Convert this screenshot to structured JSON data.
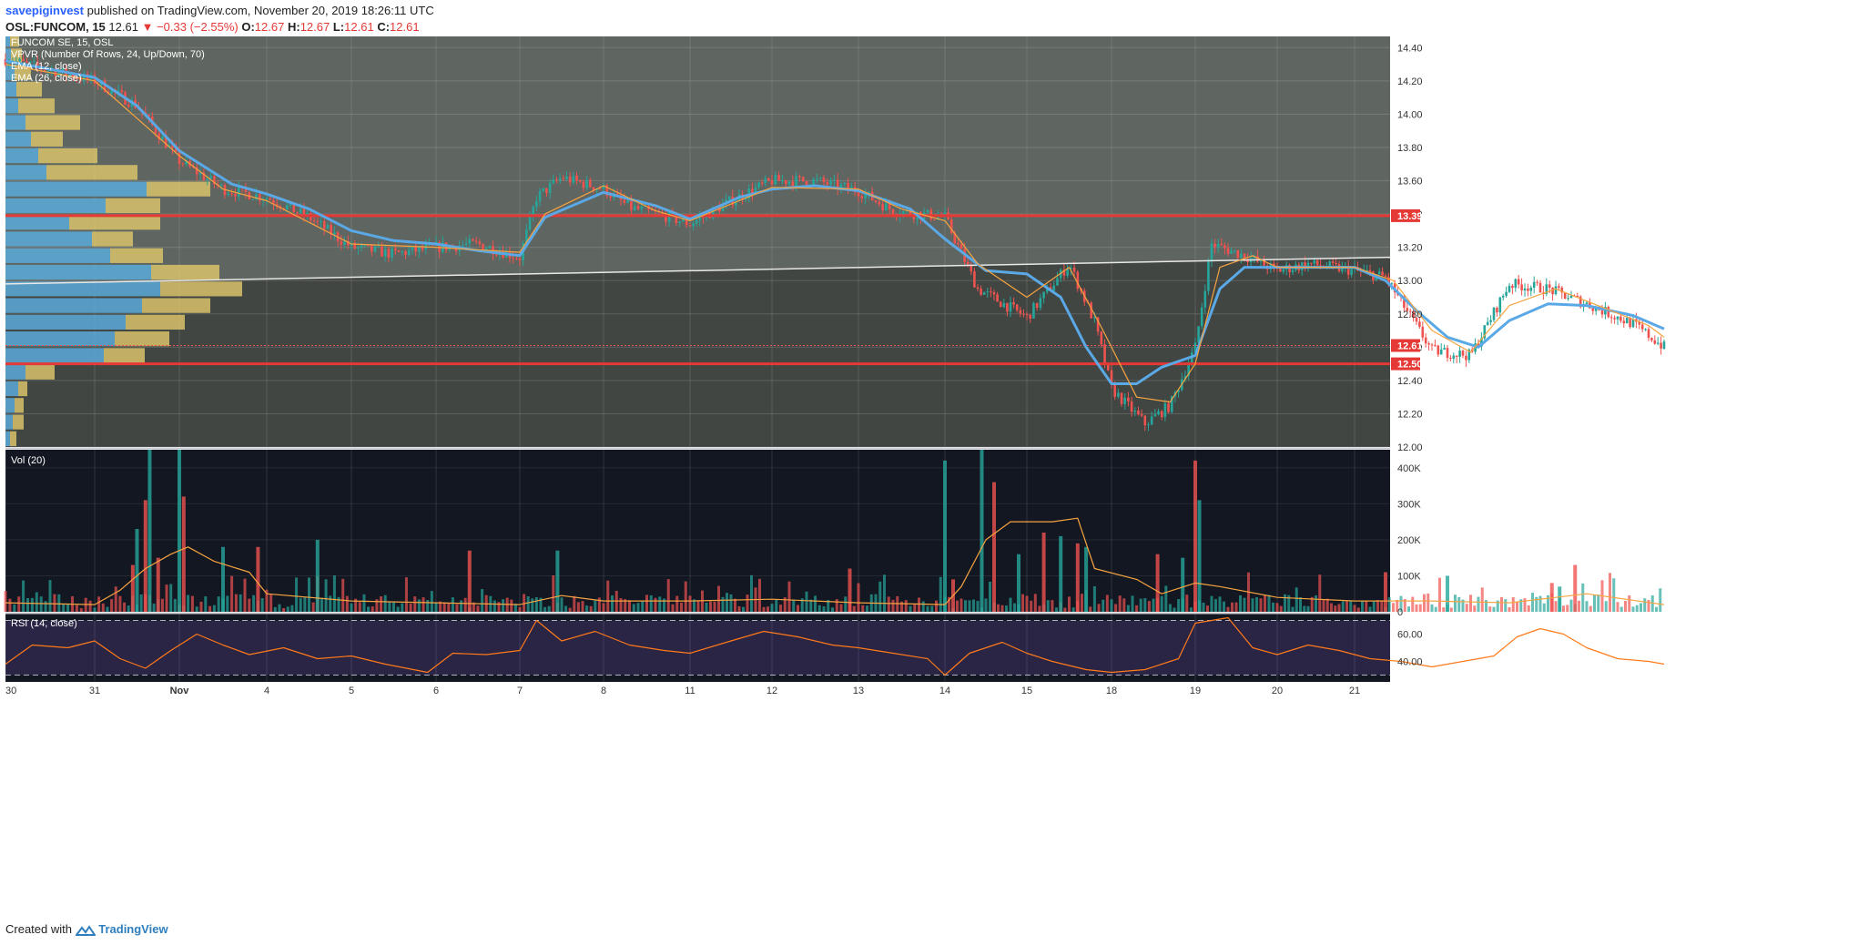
{
  "header": {
    "user": "savepiginvest",
    "published": "published on TradingView.com, November 20, 2019 18:26:11 UTC"
  },
  "quote": {
    "symbol": "OSL:FUNCOM, 15",
    "last": "12.61",
    "change": "−0.33 (−2.55%)",
    "open_label": "O:",
    "open": "12.67",
    "high_label": "H:",
    "high": "12.67",
    "low_label": "L:",
    "low": "12.61",
    "close_label": "C:",
    "close": "12.61"
  },
  "footer": {
    "created_with": "Created with",
    "brand": "TradingView"
  },
  "colors": {
    "price_bg": "#5f6560",
    "pane_bg": "#131722",
    "up": "#26a69a",
    "down": "#ef5350",
    "ema12": "#f7a440",
    "ema26": "#5aa9e6",
    "level": "#e53935",
    "rsi": "#ff7a1a",
    "vpvr_up": "#5aaad8",
    "vpvr_down": "#d8c26a"
  },
  "chart_data": {
    "type": "candlestick",
    "legend": {
      "title": "FUNCOM SE, 15, OSL",
      "vpvr": "VPVR (Number Of Rows, 24, Up/Down, 70)",
      "ema12": "EMA (12, close)",
      "ema26": "EMA (26, close)",
      "vol": "Vol (20)",
      "rsi": "RSI (14, close)"
    },
    "price_axis": {
      "ylim": [
        12.0,
        14.5
      ],
      "ticks": [
        "14.40",
        "14.20",
        "14.00",
        "13.80",
        "13.60",
        "13.40",
        "13.20",
        "13.00",
        "12.80",
        "12.60",
        "12.40",
        "12.20",
        "12.00"
      ]
    },
    "x_ticks": [
      "30",
      "31",
      "Nov",
      "4",
      "5",
      "6",
      "7",
      "8",
      "11",
      "12",
      "13",
      "14",
      "15",
      "18",
      "19",
      "20",
      "21"
    ],
    "horizontal_levels": [
      {
        "value": 13.39,
        "label": "13.39"
      },
      {
        "value": 12.5,
        "label": "12.50"
      }
    ],
    "last_price": {
      "value": 12.61,
      "label": "12.61"
    },
    "trendline": {
      "start_price": 12.98,
      "end_price": 13.14
    },
    "price_path": [
      [
        0,
        14.33
      ],
      [
        1,
        14.2
      ],
      [
        1.5,
        14.05
      ],
      [
        2,
        13.72
      ],
      [
        2.5,
        13.55
      ],
      [
        3,
        13.5
      ],
      [
        3.5,
        13.38
      ],
      [
        4,
        13.2
      ],
      [
        4.5,
        13.16
      ],
      [
        5,
        13.2
      ],
      [
        5.5,
        13.22
      ],
      [
        6,
        13.14
      ],
      [
        6.2,
        13.5
      ],
      [
        6.5,
        13.62
      ],
      [
        7,
        13.55
      ],
      [
        7.3,
        13.44
      ],
      [
        7.7,
        13.39
      ],
      [
        8,
        13.34
      ],
      [
        8.5,
        13.48
      ],
      [
        9,
        13.6
      ],
      [
        9.5,
        13.6
      ],
      [
        10,
        13.54
      ],
      [
        10.4,
        13.42
      ],
      [
        11,
        13.38
      ],
      [
        11.4,
        12.95
      ],
      [
        12,
        12.78
      ],
      [
        12.5,
        13.1
      ],
      [
        12.8,
        12.75
      ],
      [
        13,
        12.35
      ],
      [
        13.4,
        12.14
      ],
      [
        13.7,
        12.25
      ],
      [
        14,
        12.6
      ],
      [
        14.2,
        13.22
      ],
      [
        14.6,
        13.15
      ],
      [
        15,
        13.06
      ],
      [
        15.4,
        13.1
      ],
      [
        16,
        13.06
      ],
      [
        16.4,
        13.02
      ],
      [
        16.7,
        12.8
      ],
      [
        17,
        12.58
      ],
      [
        17.5,
        12.55
      ],
      [
        18,
        12.98
      ],
      [
        18.5,
        12.95
      ],
      [
        19,
        12.86
      ],
      [
        19.6,
        12.74
      ],
      [
        20,
        12.6
      ]
    ],
    "ema12_path": [
      [
        0,
        14.3
      ],
      [
        1,
        14.2
      ],
      [
        2,
        13.75
      ],
      [
        2.5,
        13.55
      ],
      [
        3,
        13.48
      ],
      [
        4,
        13.22
      ],
      [
        5,
        13.2
      ],
      [
        6,
        13.17
      ],
      [
        6.3,
        13.4
      ],
      [
        7,
        13.57
      ],
      [
        7.6,
        13.42
      ],
      [
        8,
        13.36
      ],
      [
        9,
        13.56
      ],
      [
        10,
        13.55
      ],
      [
        10.5,
        13.43
      ],
      [
        11,
        13.36
      ],
      [
        11.4,
        13.1
      ],
      [
        12,
        12.9
      ],
      [
        12.5,
        13.08
      ],
      [
        12.9,
        12.7
      ],
      [
        13.3,
        12.3
      ],
      [
        13.7,
        12.27
      ],
      [
        14,
        12.5
      ],
      [
        14.3,
        13.08
      ],
      [
        14.7,
        13.15
      ],
      [
        15,
        13.08
      ],
      [
        16,
        13.08
      ],
      [
        16.5,
        13.0
      ],
      [
        17,
        12.7
      ],
      [
        17.5,
        12.57
      ],
      [
        18,
        12.85
      ],
      [
        18.6,
        12.95
      ],
      [
        19.2,
        12.84
      ],
      [
        19.8,
        12.73
      ],
      [
        20,
        12.66
      ]
    ],
    "ema26_path": [
      [
        0,
        14.32
      ],
      [
        1,
        14.22
      ],
      [
        1.5,
        14.05
      ],
      [
        2,
        13.78
      ],
      [
        2.6,
        13.58
      ],
      [
        3,
        13.52
      ],
      [
        3.5,
        13.43
      ],
      [
        4,
        13.3
      ],
      [
        4.5,
        13.24
      ],
      [
        5,
        13.22
      ],
      [
        5.5,
        13.18
      ],
      [
        6,
        13.15
      ],
      [
        6.3,
        13.38
      ],
      [
        7,
        13.53
      ],
      [
        7.6,
        13.45
      ],
      [
        8,
        13.37
      ],
      [
        8.6,
        13.5
      ],
      [
        9,
        13.55
      ],
      [
        9.5,
        13.57
      ],
      [
        10,
        13.54
      ],
      [
        10.6,
        13.43
      ],
      [
        11,
        13.25
      ],
      [
        11.5,
        13.06
      ],
      [
        12,
        13.04
      ],
      [
        12.4,
        12.9
      ],
      [
        12.7,
        12.6
      ],
      [
        13,
        12.38
      ],
      [
        13.3,
        12.38
      ],
      [
        13.6,
        12.48
      ],
      [
        14,
        12.55
      ],
      [
        14.3,
        12.95
      ],
      [
        14.6,
        13.08
      ],
      [
        15,
        13.08
      ],
      [
        16,
        13.08
      ],
      [
        16.4,
        13.0
      ],
      [
        16.8,
        12.82
      ],
      [
        17.2,
        12.66
      ],
      [
        17.6,
        12.6
      ],
      [
        18,
        12.76
      ],
      [
        18.5,
        12.86
      ],
      [
        19,
        12.85
      ],
      [
        19.6,
        12.79
      ],
      [
        20,
        12.71
      ]
    ],
    "vpvr_rows": [
      {
        "up": 5,
        "down": 7
      },
      {
        "up": 8,
        "down": 12
      },
      {
        "up": 10,
        "down": 10
      },
      {
        "up": 14,
        "down": 10
      },
      {
        "up": 22,
        "down": 32
      },
      {
        "up": 108,
        "down": 45
      },
      {
        "up": 120,
        "down": 60
      },
      {
        "up": 132,
        "down": 65
      },
      {
        "up": 150,
        "down": 75
      },
      {
        "up": 170,
        "down": 90
      },
      {
        "up": 160,
        "down": 75
      },
      {
        "up": 115,
        "down": 58
      },
      {
        "up": 95,
        "down": 45
      },
      {
        "up": 70,
        "down": 100
      },
      {
        "up": 110,
        "down": 60
      },
      {
        "up": 155,
        "down": 70
      },
      {
        "up": 45,
        "down": 100
      },
      {
        "up": 36,
        "down": 65
      },
      {
        "up": 28,
        "down": 35
      },
      {
        "up": 22,
        "down": 60
      },
      {
        "up": 14,
        "down": 40
      },
      {
        "up": 12,
        "down": 28
      },
      {
        "up": 10,
        "down": 18
      },
      {
        "up": 6,
        "down": 12
      },
      {
        "up": 5,
        "down": 10
      }
    ],
    "volume_axis": {
      "ylim": [
        0,
        450000
      ],
      "ticks": [
        "400K",
        "300K",
        "200K",
        "100K",
        "0"
      ]
    },
    "volume_spikes": [
      [
        1.45,
        130000
      ],
      [
        1.5,
        230000
      ],
      [
        1.6,
        310000
      ],
      [
        1.65,
        470000
      ],
      [
        1.75,
        150000
      ],
      [
        2.0,
        470000
      ],
      [
        2.05,
        320000
      ],
      [
        2.5,
        180000
      ],
      [
        2.9,
        180000
      ],
      [
        3.6,
        200000
      ],
      [
        5.4,
        170000
      ],
      [
        6.45,
        170000
      ],
      [
        9.9,
        120000
      ],
      [
        11.0,
        420000
      ],
      [
        11.1,
        90000
      ],
      [
        11.45,
        470000
      ],
      [
        11.6,
        360000
      ],
      [
        11.9,
        160000
      ],
      [
        12.2,
        220000
      ],
      [
        12.4,
        210000
      ],
      [
        12.6,
        190000
      ],
      [
        12.7,
        180000
      ],
      [
        13.55,
        160000
      ],
      [
        13.85,
        150000
      ],
      [
        14.0,
        420000
      ],
      [
        14.05,
        310000
      ],
      [
        16.4,
        110000
      ],
      [
        17.2,
        100000
      ],
      [
        18.55,
        80000
      ],
      [
        18.65,
        70000
      ],
      [
        18.85,
        130000
      ]
    ],
    "volume_ma_path": [
      [
        0,
        25000
      ],
      [
        1,
        20000
      ],
      [
        1.3,
        60000
      ],
      [
        1.6,
        120000
      ],
      [
        1.9,
        160000
      ],
      [
        2.1,
        180000
      ],
      [
        2.4,
        140000
      ],
      [
        2.8,
        110000
      ],
      [
        3,
        50000
      ],
      [
        4,
        30000
      ],
      [
        5,
        25000
      ],
      [
        6,
        20000
      ],
      [
        6.5,
        45000
      ],
      [
        7,
        30000
      ],
      [
        8,
        30000
      ],
      [
        9,
        35000
      ],
      [
        10,
        25000
      ],
      [
        11,
        20000
      ],
      [
        11.2,
        70000
      ],
      [
        11.5,
        200000
      ],
      [
        11.8,
        250000
      ],
      [
        12.1,
        250000
      ],
      [
        12.3,
        250000
      ],
      [
        12.6,
        260000
      ],
      [
        12.8,
        120000
      ],
      [
        13.3,
        90000
      ],
      [
        13.6,
        50000
      ],
      [
        14,
        80000
      ],
      [
        14.3,
        70000
      ],
      [
        15,
        40000
      ],
      [
        16,
        30000
      ],
      [
        17,
        30000
      ],
      [
        18,
        25000
      ],
      [
        18.6,
        40000
      ],
      [
        19,
        50000
      ],
      [
        19.5,
        35000
      ],
      [
        20,
        20000
      ]
    ],
    "rsi_axis": {
      "ylim": [
        25,
        75
      ],
      "ticks": [
        "60.00",
        "40.00"
      ],
      "bands": [
        70,
        30
      ]
    },
    "rsi_path": [
      [
        0,
        38
      ],
      [
        0.3,
        52
      ],
      [
        0.7,
        50
      ],
      [
        1,
        55
      ],
      [
        1.3,
        42
      ],
      [
        1.6,
        35
      ],
      [
        1.9,
        48
      ],
      [
        2.2,
        60
      ],
      [
        2.5,
        52
      ],
      [
        2.8,
        45
      ],
      [
        3.2,
        50
      ],
      [
        3.6,
        42
      ],
      [
        4,
        44
      ],
      [
        4.4,
        38
      ],
      [
        4.9,
        32
      ],
      [
        5.2,
        46
      ],
      [
        5.6,
        45
      ],
      [
        6,
        48
      ],
      [
        6.2,
        70
      ],
      [
        6.5,
        55
      ],
      [
        6.9,
        62
      ],
      [
        7.3,
        52
      ],
      [
        7.7,
        48
      ],
      [
        8,
        46
      ],
      [
        8.5,
        55
      ],
      [
        8.9,
        62
      ],
      [
        9.3,
        58
      ],
      [
        9.7,
        52
      ],
      [
        10,
        50
      ],
      [
        10.4,
        46
      ],
      [
        10.8,
        42
      ],
      [
        11.0,
        30
      ],
      [
        11.3,
        46
      ],
      [
        11.7,
        54
      ],
      [
        12,
        46
      ],
      [
        12.3,
        40
      ],
      [
        12.7,
        34
      ],
      [
        13,
        32
      ],
      [
        13.4,
        34
      ],
      [
        13.8,
        42
      ],
      [
        14,
        68
      ],
      [
        14.4,
        72
      ],
      [
        14.7,
        50
      ],
      [
        15,
        45
      ],
      [
        15.4,
        52
      ],
      [
        15.8,
        48
      ],
      [
        16.2,
        42
      ],
      [
        16.6,
        40
      ],
      [
        17,
        36
      ],
      [
        17.4,
        40
      ],
      [
        17.8,
        44
      ],
      [
        18.1,
        58
      ],
      [
        18.4,
        64
      ],
      [
        18.7,
        60
      ],
      [
        19,
        50
      ],
      [
        19.4,
        42
      ],
      [
        19.8,
        40
      ],
      [
        20,
        38
      ]
    ]
  }
}
